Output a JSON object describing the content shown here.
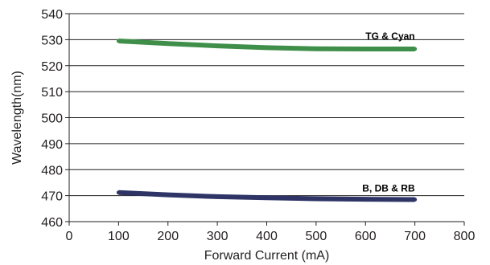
{
  "chart_data": {
    "type": "line",
    "xlabel": "Forward Current (mA)",
    "ylabel": "Wavelength(nm)",
    "xlim": [
      0,
      800
    ],
    "ylim": [
      460,
      540
    ],
    "xticks": [
      0,
      100,
      200,
      300,
      400,
      500,
      600,
      700,
      800
    ],
    "yticks": [
      460,
      470,
      480,
      490,
      500,
      510,
      520,
      530,
      540
    ],
    "grid": "horizontal",
    "series": [
      {
        "name": "TG & Cyan",
        "color": "#3f8f4a",
        "x": [
          100,
          200,
          300,
          400,
          500,
          600,
          700
        ],
        "y": [
          529.5,
          528.5,
          527.6,
          526.9,
          526.5,
          526.4,
          526.4
        ]
      },
      {
        "name": "B, DB & RB",
        "color": "#2e3566",
        "x": [
          100,
          200,
          300,
          400,
          500,
          600,
          700
        ],
        "y": [
          471.2,
          470.3,
          469.6,
          469.2,
          468.8,
          468.6,
          468.5
        ]
      }
    ]
  }
}
